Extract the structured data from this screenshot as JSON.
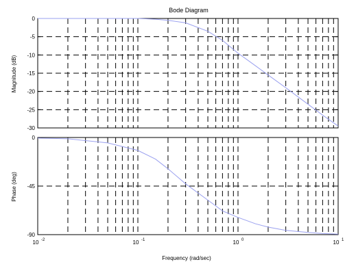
{
  "chart_data": {
    "type": "line",
    "title": "Bode Diagram",
    "xlabel": "Frequency  (rad/sec)",
    "x_scale": "log",
    "xlim": [
      0.01,
      10
    ],
    "x_ticks": [
      {
        "value": 0.01,
        "base": "10",
        "exp": "-2"
      },
      {
        "value": 0.1,
        "base": "10",
        "exp": "-1"
      },
      {
        "value": 1,
        "base": "10",
        "exp": "0"
      },
      {
        "value": 10,
        "base": "10",
        "exp": "1"
      }
    ],
    "grid": true,
    "panels": [
      {
        "name": "magnitude",
        "ylabel": "Magnitude (dB)",
        "ylim": [
          -30,
          0
        ],
        "y_ticks": [
          0,
          -5,
          -10,
          -15,
          -20,
          -25,
          -30
        ],
        "series": [
          {
            "color": "#9aa0ef",
            "x": [
              0.01,
              0.02,
              0.05,
              0.1,
              0.15,
              0.2,
              0.3,
              0.5,
              0.7,
              1,
              1.5,
              2,
              3,
              5,
              7,
              10
            ],
            "y": [
              0,
              0,
              0,
              0,
              -0.2,
              -0.5,
              -1.2,
              -3.5,
              -6,
              -9.5,
              -13,
              -15.5,
              -19,
              -23.5,
              -26.5,
              -29.5
            ]
          }
        ]
      },
      {
        "name": "phase",
        "ylabel": "Phase (deg)",
        "ylim": [
          -90,
          0
        ],
        "y_ticks": [
          0,
          -45,
          -90
        ],
        "series": [
          {
            "color": "#9aa0ef",
            "x": [
              0.01,
              0.02,
              0.05,
              0.1,
              0.15,
              0.2,
              0.3,
              0.5,
              0.7,
              1,
              1.5,
              2,
              3,
              5,
              7,
              10
            ],
            "y": [
              -0.6,
              -1.2,
              -5,
              -12,
              -20,
              -29,
              -43,
              -58,
              -68,
              -74,
              -80,
              -83,
              -86,
              -88,
              -89,
              -89.5
            ]
          }
        ]
      }
    ]
  }
}
